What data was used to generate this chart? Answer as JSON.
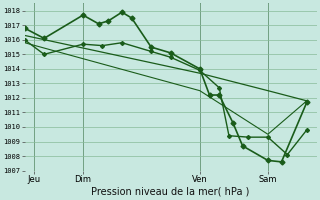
{
  "title": "Pression niveau de la mer( hPa )",
  "bg_color": "#c8e8e0",
  "grid_color": "#88bb99",
  "line_color": "#1a5c1a",
  "ylim": [
    1007,
    1018.5
  ],
  "xlim": [
    0,
    15
  ],
  "yticks": [
    1007,
    1008,
    1009,
    1010,
    1011,
    1012,
    1013,
    1014,
    1015,
    1016,
    1017,
    1018
  ],
  "xtick_labels": [
    "Jeu",
    "Dim",
    "Ven",
    "Sam"
  ],
  "xtick_positions": [
    0.5,
    3.0,
    9.0,
    12.5
  ],
  "vline_positions": [
    0.5,
    3.0,
    9.0,
    12.5
  ],
  "series": [
    {
      "x": [
        0.0,
        1.0,
        3.0,
        3.8,
        4.3,
        5.0,
        5.5,
        6.5,
        7.5,
        9.0,
        9.5,
        10.0,
        10.7,
        11.2,
        12.5,
        13.2,
        14.5
      ],
      "y": [
        1016.8,
        1016.1,
        1017.7,
        1017.1,
        1017.3,
        1017.9,
        1017.5,
        1015.5,
        1015.1,
        1014.0,
        1012.2,
        1012.2,
        1010.3,
        1008.7,
        1007.7,
        1007.6,
        1011.7
      ],
      "marker": "D",
      "markersize": 2.5,
      "linewidth": 1.2
    },
    {
      "x": [
        0.0,
        1.0,
        3.0,
        4.0,
        5.0,
        6.5,
        7.5,
        9.0,
        10.0,
        10.5,
        11.5,
        12.5,
        13.5,
        14.5
      ],
      "y": [
        1016.0,
        1015.0,
        1015.7,
        1015.6,
        1015.8,
        1015.2,
        1014.8,
        1013.9,
        1012.7,
        1009.4,
        1009.3,
        1009.3,
        1008.1,
        1009.8
      ],
      "marker": "D",
      "markersize": 2.0,
      "linewidth": 1.0
    },
    {
      "x": [
        0.0,
        9.0,
        12.5,
        14.5
      ],
      "y": [
        1016.3,
        1013.7,
        1012.5,
        1011.8
      ],
      "marker": null,
      "markersize": 0,
      "linewidth": 0.9
    },
    {
      "x": [
        0.0,
        9.0,
        12.5,
        14.5
      ],
      "y": [
        1015.8,
        1012.5,
        1009.5,
        1011.8
      ],
      "marker": null,
      "markersize": 0,
      "linewidth": 0.8
    }
  ]
}
